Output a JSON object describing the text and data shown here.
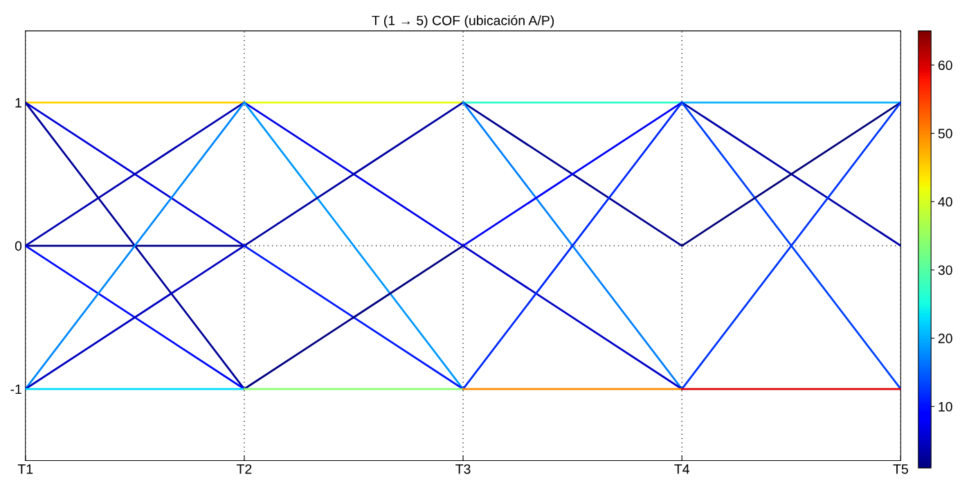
{
  "chart_data": {
    "type": "line",
    "title": "T (1 → 5) COF (ubicación A/P)",
    "categories": [
      "T1",
      "T2",
      "T3",
      "T4",
      "T5"
    ],
    "ylim": [
      -1.5,
      1.5
    ],
    "yticks": [
      -1,
      0,
      1
    ],
    "grid": true,
    "line_style": "solid",
    "marker": "none",
    "clim": [
      1,
      65
    ],
    "cticks": [
      10,
      20,
      30,
      40,
      50,
      60
    ],
    "series": [
      {
        "color": "#ffd400",
        "values": [
          1,
          1,
          null,
          null,
          null
        ]
      },
      {
        "color": "#0000d8",
        "values": [
          1,
          0,
          null,
          null,
          null
        ]
      },
      {
        "color": "#000098",
        "values": [
          1,
          -1,
          null,
          null,
          null
        ]
      },
      {
        "color": "#0000b0",
        "values": [
          0,
          1,
          null,
          null,
          null
        ]
      },
      {
        "color": "#000088",
        "values": [
          0,
          0,
          null,
          null,
          null
        ]
      },
      {
        "color": "#0008ff",
        "values": [
          0,
          -1,
          null,
          null,
          null
        ]
      },
      {
        "color": "#0088ff",
        "values": [
          -1,
          1,
          null,
          null,
          null
        ]
      },
      {
        "color": "#0000c0",
        "values": [
          -1,
          0,
          null,
          null,
          null
        ]
      },
      {
        "color": "#00dcff",
        "values": [
          -1,
          -1,
          null,
          null,
          null
        ]
      },
      {
        "color": "#eaff14",
        "values": [
          null,
          1,
          1,
          null,
          null
        ]
      },
      {
        "color": "#0000e8",
        "values": [
          null,
          1,
          0,
          null,
          null
        ]
      },
      {
        "color": "#0098ff",
        "values": [
          null,
          1,
          -1,
          null,
          null
        ]
      },
      {
        "color": "#0000a0",
        "values": [
          null,
          0,
          1,
          null,
          null
        ]
      },
      {
        "color": "#0018ff",
        "values": [
          null,
          0,
          -1,
          null,
          null
        ]
      },
      {
        "color": "#000080",
        "values": [
          null,
          -1,
          0,
          null,
          null
        ]
      },
      {
        "color": "#8cff72",
        "values": [
          null,
          -1,
          -1,
          null,
          null
        ]
      },
      {
        "color": "#30ffd0",
        "values": [
          null,
          null,
          1,
          1,
          null
        ]
      },
      {
        "color": "#000090",
        "values": [
          null,
          null,
          1,
          0,
          null
        ]
      },
      {
        "color": "#0080ff",
        "values": [
          null,
          null,
          1,
          -1,
          null
        ]
      },
      {
        "color": "#0000f8",
        "values": [
          null,
          null,
          0,
          1,
          null
        ]
      },
      {
        "color": "#0000c8",
        "values": [
          null,
          null,
          0,
          -1,
          null
        ]
      },
      {
        "color": "#0028ff",
        "values": [
          null,
          null,
          -1,
          1,
          null
        ]
      },
      {
        "color": "#ff8c00",
        "values": [
          null,
          null,
          -1,
          -1,
          null
        ]
      },
      {
        "color": "#10b4ff",
        "values": [
          null,
          null,
          null,
          1,
          1
        ]
      },
      {
        "color": "#0000a8",
        "values": [
          null,
          null,
          null,
          1,
          0
        ]
      },
      {
        "color": "#0040ff",
        "values": [
          null,
          null,
          null,
          1,
          -1
        ]
      },
      {
        "color": "#000078",
        "values": [
          null,
          null,
          null,
          0,
          1
        ]
      },
      {
        "color": "#0034ff",
        "values": [
          null,
          null,
          null,
          -1,
          1
        ]
      },
      {
        "color": "#e00000",
        "values": [
          null,
          null,
          null,
          -1,
          -1
        ]
      }
    ]
  }
}
